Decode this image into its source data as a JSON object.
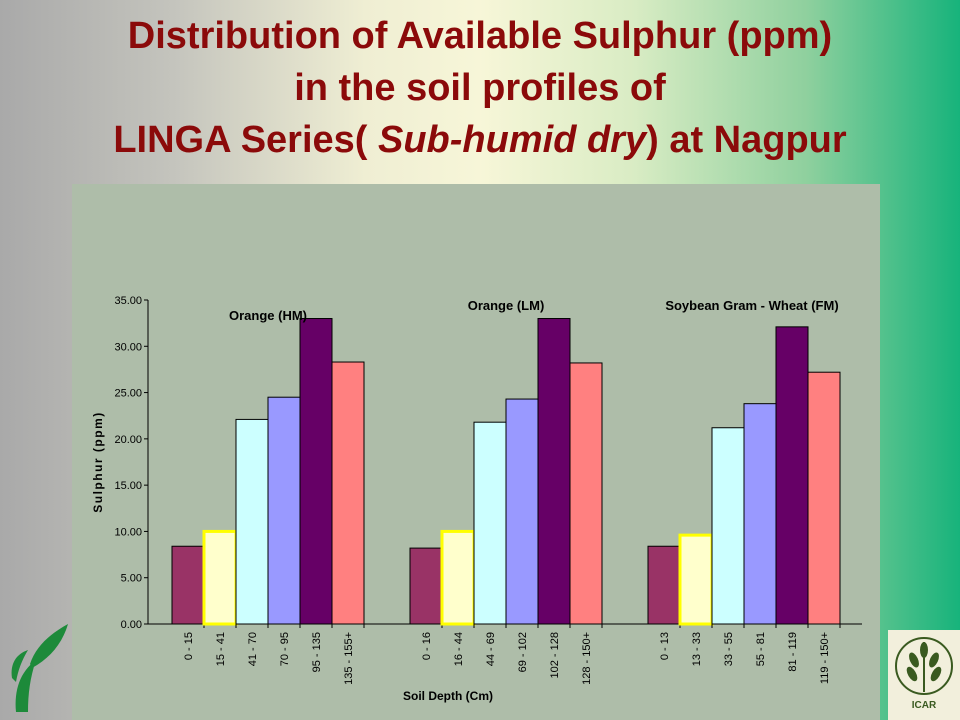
{
  "slide": {
    "title_line1": "Distribution of Available Sulphur (ppm)",
    "title_line2": "in the soil profiles of",
    "title_line3_pre": "LINGA Series( ",
    "title_line3_italic": "Sub-humid dry",
    "title_line3_post": ") at Nagpur"
  },
  "logos": {
    "right_text": "ICAR"
  },
  "chart_data": {
    "type": "bar",
    "ylabel": "Sulphur (ppm)",
    "xlabel": "Soil Depth (Cm)",
    "ylim": [
      0,
      35
    ],
    "yticks": [
      "0.00",
      "5.00",
      "10.00",
      "15.00",
      "20.00",
      "25.00",
      "30.00",
      "35.00"
    ],
    "grid": false,
    "colors": [
      "#993366",
      "#ffffcc",
      "#ccffff",
      "#9999ff",
      "#660066",
      "#ff8080"
    ],
    "groups": [
      {
        "name": "Orange (HM)",
        "depths": [
          "0 - 15",
          "15 - 41",
          "41 - 70",
          "70 - 95",
          "95 - 135",
          "135 - 155+"
        ],
        "values": [
          8.4,
          10.0,
          22.1,
          24.5,
          33.0,
          28.3
        ]
      },
      {
        "name": "Orange (LM)",
        "depths": [
          "0 - 16",
          "16 - 44",
          "44 - 69",
          "69 - 102",
          "102 - 128",
          "128 - 150+"
        ],
        "values": [
          8.2,
          10.0,
          21.8,
          24.3,
          33.0,
          28.2
        ]
      },
      {
        "name": "Soybean Gram - Wheat (FM)",
        "depths": [
          "0 - 13",
          "13 - 33",
          "33 - 55",
          "55 - 81",
          "81 - 119",
          "119 - 150+"
        ],
        "values": [
          8.4,
          9.6,
          21.2,
          23.8,
          32.1,
          27.2
        ]
      }
    ]
  }
}
